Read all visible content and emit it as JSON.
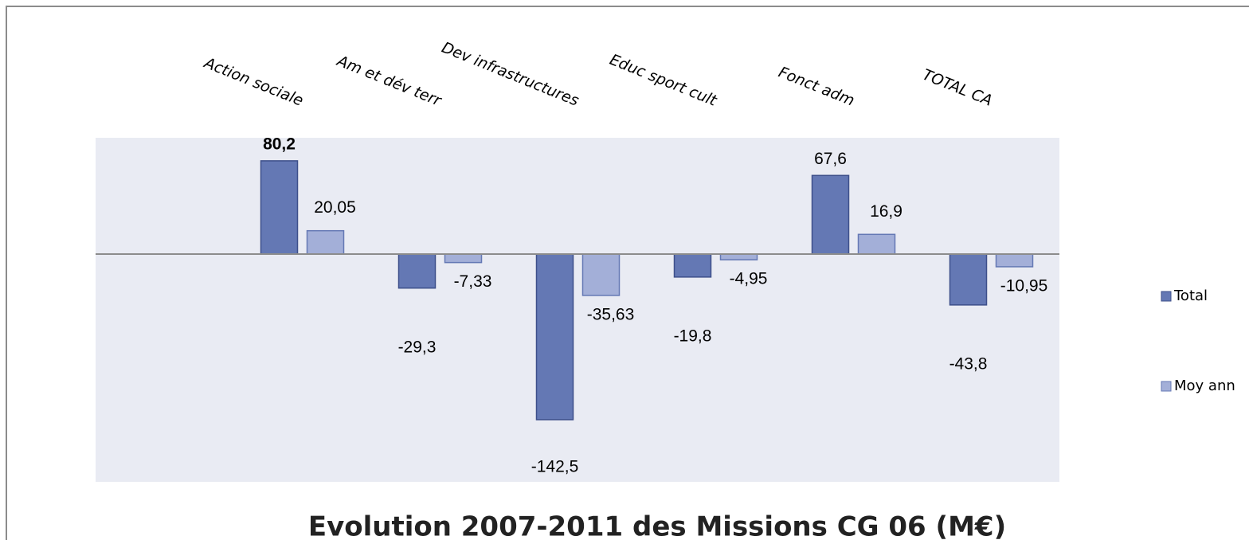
{
  "chart_data": {
    "type": "bar",
    "title": "Evolution 2007-2011 des Missions CG 06 (M€)",
    "categories": [
      "Action sociale",
      "Am et dév terr",
      "Dev infrastructures",
      "Educ sport cult",
      "Fonct adm",
      "TOTAL CA"
    ],
    "series": [
      {
        "name": "Total",
        "color": "#6478b4",
        "values": [
          80.2,
          -29.3,
          -142.5,
          -19.8,
          67.6,
          -43.8
        ],
        "value_labels": [
          "80,2",
          "-29,3",
          "-142,5",
          "-19,8",
          "67,6",
          "-43,8"
        ]
      },
      {
        "name": "Moy ann",
        "color": "#a3afd8",
        "values": [
          20.05,
          -7.33,
          -35.63,
          -4.95,
          16.9,
          -10.95
        ],
        "value_labels": [
          "20,05",
          "-7,33",
          "-35,63",
          "-4,95",
          "16,9",
          "-10,95"
        ]
      }
    ],
    "ylim": [
      -196,
      100
    ],
    "legend": "right"
  }
}
